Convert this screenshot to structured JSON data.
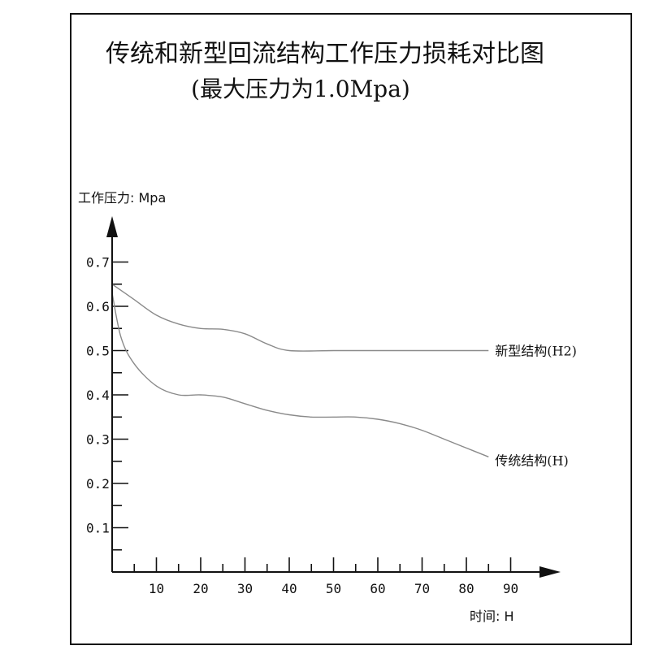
{
  "chart_data": {
    "type": "line",
    "title": "传统和新型回流结构工作压力损耗对比图",
    "subtitle": "(最大压力为1.0Mpa)",
    "xlabel": "时间: H",
    "ylabel": "工作压力: Mpa",
    "xlim": [
      0,
      100
    ],
    "ylim": [
      0,
      0.8
    ],
    "x_ticks": [
      10,
      20,
      30,
      40,
      50,
      60,
      70,
      80,
      90
    ],
    "y_ticks": [
      0.1,
      0.2,
      0.3,
      0.4,
      0.5,
      0.6,
      0.7
    ],
    "grid": false,
    "series": [
      {
        "name": "新型结构(H2)",
        "x": [
          0,
          5,
          10,
          15,
          20,
          25,
          30,
          35,
          40,
          50,
          60,
          70,
          80,
          85
        ],
        "y": [
          0.65,
          0.615,
          0.58,
          0.56,
          0.55,
          0.548,
          0.538,
          0.515,
          0.5,
          0.5,
          0.5,
          0.5,
          0.5,
          0.5
        ],
        "color": "#8a8a8a"
      },
      {
        "name": "传统结构(H)",
        "x": [
          0,
          2,
          5,
          10,
          15,
          20,
          25,
          30,
          35,
          40,
          45,
          50,
          55,
          60,
          65,
          70,
          75,
          80,
          85
        ],
        "y": [
          0.63,
          0.53,
          0.47,
          0.42,
          0.4,
          0.4,
          0.395,
          0.38,
          0.365,
          0.355,
          0.35,
          0.35,
          0.35,
          0.345,
          0.335,
          0.32,
          0.3,
          0.28,
          0.26
        ],
        "color": "#8a8a8a"
      }
    ]
  }
}
